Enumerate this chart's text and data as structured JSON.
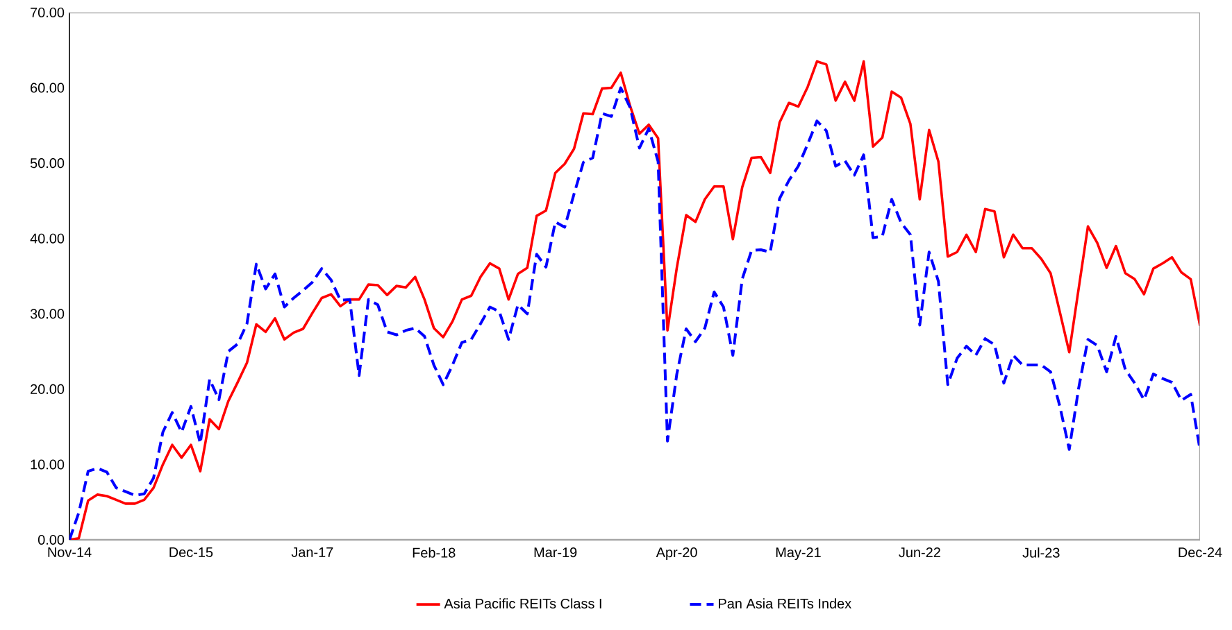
{
  "chart_data": {
    "type": "line",
    "x": [
      "2014-11",
      "2014-12",
      "2015-01",
      "2015-02",
      "2015-03",
      "2015-04",
      "2015-05",
      "2015-06",
      "2015-07",
      "2015-08",
      "2015-09",
      "2015-10",
      "2015-11",
      "2015-12",
      "2016-01",
      "2016-02",
      "2016-03",
      "2016-04",
      "2016-05",
      "2016-06",
      "2016-07",
      "2016-08",
      "2016-09",
      "2016-10",
      "2016-11",
      "2016-12",
      "2017-01",
      "2017-02",
      "2017-03",
      "2017-04",
      "2017-05",
      "2017-06",
      "2017-07",
      "2017-08",
      "2017-09",
      "2017-10",
      "2017-11",
      "2017-12",
      "2018-01",
      "2018-02",
      "2018-03",
      "2018-04",
      "2018-05",
      "2018-06",
      "2018-07",
      "2018-08",
      "2018-09",
      "2018-10",
      "2018-11",
      "2018-12",
      "2019-01",
      "2019-02",
      "2019-03",
      "2019-04",
      "2019-05",
      "2019-06",
      "2019-07",
      "2019-08",
      "2019-09",
      "2019-10",
      "2019-11",
      "2019-12",
      "2020-01",
      "2020-02",
      "2020-03",
      "2020-04",
      "2020-05",
      "2020-06",
      "2020-07",
      "2020-08",
      "2020-09",
      "2020-10",
      "2020-11",
      "2020-12",
      "2021-01",
      "2021-02",
      "2021-03",
      "2021-04",
      "2021-05",
      "2021-06",
      "2021-07",
      "2021-08",
      "2021-09",
      "2021-10",
      "2021-11",
      "2021-12",
      "2022-01",
      "2022-02",
      "2022-03",
      "2022-04",
      "2022-05",
      "2022-06",
      "2022-07",
      "2022-08",
      "2022-09",
      "2022-10",
      "2022-11",
      "2022-12",
      "2023-01",
      "2023-02",
      "2023-03",
      "2023-04",
      "2023-05",
      "2023-06",
      "2023-07",
      "2023-08",
      "2023-09",
      "2023-10",
      "2023-11",
      "2023-12",
      "2024-01",
      "2024-02",
      "2024-03",
      "2024-04",
      "2024-05",
      "2024-06",
      "2024-07",
      "2024-08",
      "2024-09",
      "2024-10",
      "2024-11",
      "2024-12"
    ],
    "series": [
      {
        "name": "Asia Pacific REITs Class I",
        "color": "#ff0000",
        "line_style": "solid",
        "values": [
          0,
          0.2,
          5.2,
          6.0,
          5.8,
          5.3,
          4.8,
          4.8,
          5.3,
          6.9,
          10.0,
          12.6,
          10.9,
          12.6,
          9.1,
          16.0,
          14.7,
          18.4,
          20.9,
          23.5,
          28.6,
          27.6,
          29.4,
          26.6,
          27.5,
          28.0,
          30.1,
          32.1,
          32.6,
          31.0,
          31.9,
          31.9,
          33.9,
          33.8,
          32.5,
          33.7,
          33.5,
          34.9,
          31.9,
          28.1,
          26.9,
          29.0,
          31.9,
          32.4,
          34.9,
          36.7,
          36.0,
          31.9,
          35.3,
          36.1,
          43.0,
          43.7,
          48.7,
          49.9,
          51.9,
          56.6,
          56.5,
          59.9,
          60.0,
          62.0,
          57.6,
          53.9,
          55.1,
          53.3,
          27.8,
          36.1,
          43.1,
          42.2,
          45.2,
          46.9,
          46.9,
          39.9,
          46.8,
          50.7,
          50.8,
          48.7,
          55.4,
          58.0,
          57.5,
          60.1,
          63.5,
          63.1,
          58.3,
          60.8,
          58.3,
          63.5,
          52.2,
          53.4,
          59.5,
          58.7,
          55.2,
          45.2,
          54.4,
          50.2,
          37.6,
          38.2,
          40.5,
          38.2,
          43.9,
          43.6,
          37.5,
          40.5,
          38.7,
          38.7,
          37.3,
          35.4,
          30.2,
          24.9,
          33.3,
          41.6,
          39.4,
          36.1,
          39.0,
          35.4,
          34.6,
          32.6,
          36.0,
          36.7,
          37.5,
          35.5,
          34.6,
          28.4
        ]
      },
      {
        "name": "Pan Asia REITs Index",
        "color": "#0000ff",
        "line_style": "dashed",
        "values": [
          0,
          3.6,
          9.1,
          9.5,
          9.0,
          6.9,
          6.4,
          5.9,
          6.1,
          8.2,
          14.3,
          16.9,
          14.3,
          17.7,
          12.8,
          21.3,
          18.6,
          25.0,
          26.0,
          28.7,
          36.6,
          33.3,
          35.3,
          30.9,
          32.1,
          33.1,
          34.2,
          36.0,
          34.5,
          31.8,
          31.9,
          21.8,
          31.9,
          31.2,
          27.6,
          27.2,
          27.8,
          28.1,
          27.0,
          23.2,
          20.6,
          23.2,
          26.2,
          26.6,
          28.7,
          30.9,
          30.3,
          26.6,
          31.2,
          30.0,
          37.9,
          36.2,
          42.2,
          41.5,
          45.9,
          50.1,
          50.7,
          56.6,
          56.2,
          60.0,
          57.4,
          52.0,
          54.6,
          50.2,
          13.1,
          22.0,
          28.0,
          26.3,
          28.1,
          32.9,
          30.9,
          24.5,
          34.6,
          38.4,
          38.5,
          38.2,
          45.3,
          47.7,
          49.6,
          52.5,
          55.6,
          54.3,
          49.6,
          50.3,
          48.4,
          51.1,
          40.1,
          40.3,
          45.2,
          42.1,
          40.5,
          28.5,
          38.2,
          34.3,
          20.6,
          24.1,
          25.7,
          24.5,
          26.7,
          25.9,
          20.8,
          24.5,
          23.2,
          23.2,
          23.2,
          22.3,
          17.7,
          12.0,
          20.1,
          26.6,
          25.8,
          22.3,
          27.0,
          22.6,
          20.8,
          18.6,
          22.0,
          21.4,
          20.9,
          18.5,
          19.3,
          11.9
        ]
      }
    ],
    "xlim": [
      "2014-11",
      "2024-12"
    ],
    "xticks": [
      {
        "value": "2014-11",
        "label": "Nov-14"
      },
      {
        "value": "2015-12",
        "label": "Dec-15"
      },
      {
        "value": "2017-01",
        "label": "Jan-17"
      },
      {
        "value": "2018-02",
        "label": "Feb-18"
      },
      {
        "value": "2019-03",
        "label": "Mar-19"
      },
      {
        "value": "2020-04",
        "label": "Apr-20"
      },
      {
        "value": "2021-05",
        "label": "May-21"
      },
      {
        "value": "2022-06",
        "label": "Jun-22"
      },
      {
        "value": "2023-07",
        "label": "Jul-23"
      },
      {
        "value": "2024-12",
        "label": "Dec-24"
      }
    ],
    "ylim": [
      0,
      70
    ],
    "yticks": [
      {
        "value": 0,
        "label": "0.00"
      },
      {
        "value": 10,
        "label": "10.00"
      },
      {
        "value": 20,
        "label": "20.00"
      },
      {
        "value": 30,
        "label": "30.00"
      },
      {
        "value": 40,
        "label": "40.00"
      },
      {
        "value": 50,
        "label": "50.00"
      },
      {
        "value": 60,
        "label": "60.00"
      },
      {
        "value": 70,
        "label": "70.00"
      }
    ],
    "grid": false,
    "legend": "bottom"
  }
}
